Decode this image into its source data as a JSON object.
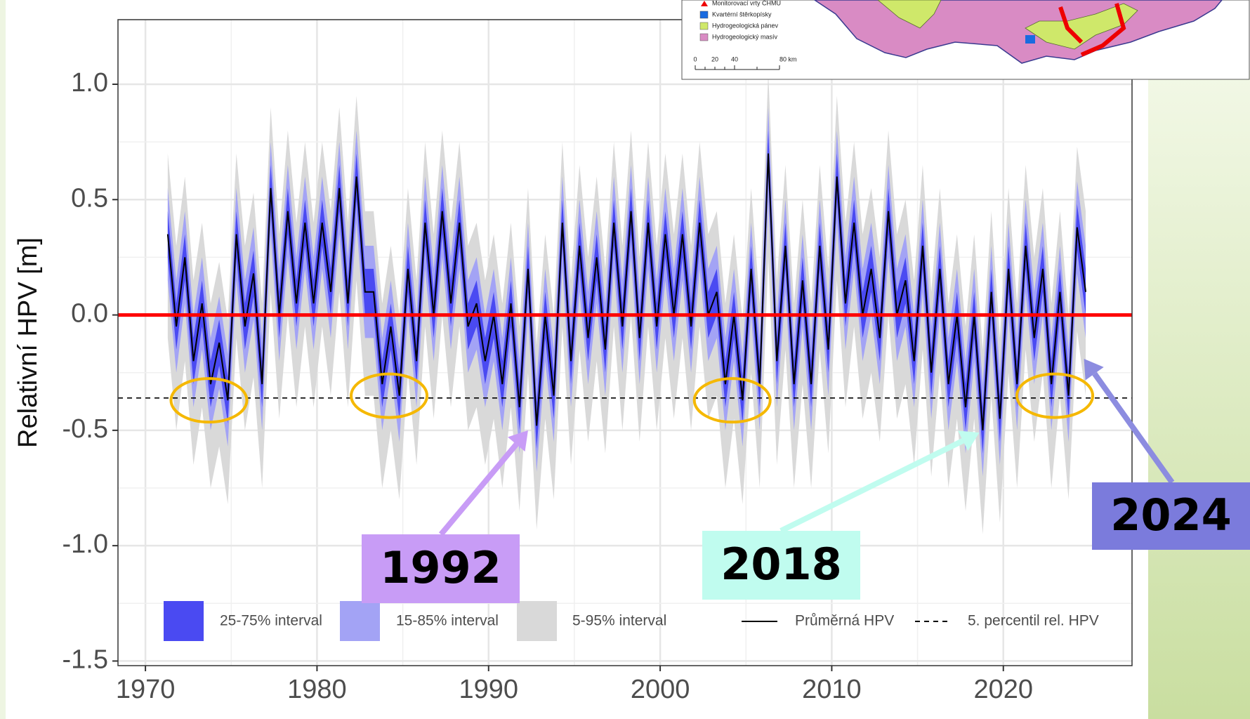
{
  "chart_data": {
    "type": "band_line",
    "y_label": "Relativní HPV [m]",
    "xlim": [
      1968.4,
      2027.5
    ],
    "ylim": [
      -1.52,
      1.28
    ],
    "xticks": [
      1970,
      1980,
      1990,
      2000,
      2010,
      2020
    ],
    "yticks": [
      {
        "value": 1,
        "label": "1.0"
      },
      {
        "value": 0.5,
        "label": "0.5"
      },
      {
        "value": 0,
        "label": "0.0"
      },
      {
        "value": -0.5,
        "label": "-0.5"
      },
      {
        "value": -1,
        "label": "-1.0"
      },
      {
        "value": -1.5,
        "label": "-1.5"
      }
    ],
    "grid": true,
    "x": [
      1971.3,
      1971.8,
      1972.3,
      1972.8,
      1973.3,
      1973.8,
      1974.3,
      1974.8,
      1975.3,
      1975.8,
      1976.3,
      1976.8,
      1977.3,
      1977.8,
      1978.3,
      1978.8,
      1979.3,
      1979.8,
      1980.3,
      1980.8,
      1981.3,
      1981.8,
      1982.3,
      1982.8,
      1983.3,
      1983.8,
      1984.3,
      1984.8,
      1985.3,
      1985.8,
      1986.3,
      1986.8,
      1987.3,
      1987.8,
      1988.3,
      1988.8,
      1989.3,
      1989.8,
      1990.3,
      1990.8,
      1991.3,
      1991.8,
      1992.3,
      1992.8,
      1993.3,
      1993.8,
      1994.3,
      1994.8,
      1995.3,
      1995.8,
      1996.3,
      1996.8,
      1997.3,
      1997.8,
      1998.3,
      1998.8,
      1999.3,
      1999.8,
      2000.3,
      2000.8,
      2001.3,
      2001.8,
      2002.3,
      2002.8,
      2003.3,
      2003.8,
      2004.3,
      2004.8,
      2005.3,
      2005.8,
      2006.3,
      2006.8,
      2007.3,
      2007.8,
      2008.3,
      2008.8,
      2009.3,
      2009.8,
      2010.3,
      2010.8,
      2011.3,
      2011.8,
      2012.3,
      2012.8,
      2013.3,
      2013.8,
      2014.3,
      2014.8,
      2015.3,
      2015.8,
      2016.3,
      2016.8,
      2017.3,
      2017.8,
      2018.3,
      2018.8,
      2019.3,
      2019.8,
      2020.3,
      2020.8,
      2021.3,
      2021.8,
      2022.3,
      2022.8,
      2023.3,
      2023.8,
      2024.3,
      2024.8
    ],
    "bands": [
      {
        "name": "5-95% interval",
        "color": "#d9d9d9",
        "lower": [
          -0.1,
          -0.5,
          -0.2,
          -0.65,
          -0.4,
          -0.75,
          -0.57,
          -0.82,
          -0.1,
          -0.5,
          -0.27,
          -0.75,
          0.1,
          -0.45,
          0.0,
          -0.4,
          -0.05,
          -0.4,
          -0.05,
          -0.35,
          0.1,
          -0.4,
          0.15,
          -0.35,
          -0.35,
          -0.75,
          -0.5,
          -0.8,
          -0.25,
          -0.65,
          -0.05,
          -0.45,
          0.0,
          -0.4,
          -0.05,
          -0.5,
          -0.4,
          -0.65,
          -0.45,
          -0.75,
          -0.4,
          -0.85,
          -0.25,
          -0.93,
          -0.45,
          -0.8,
          -0.05,
          -0.65,
          -0.15,
          -0.55,
          -0.2,
          -0.6,
          -0.05,
          -0.5,
          0.0,
          -0.55,
          -0.05,
          -0.5,
          -0.1,
          -0.45,
          -0.1,
          -0.5,
          -0.05,
          -0.45,
          -0.35,
          -0.75,
          -0.45,
          -0.82,
          -0.25,
          -0.75,
          0.25,
          -0.65,
          -0.15,
          -0.75,
          -0.3,
          -0.75,
          -0.15,
          -0.6,
          0.15,
          -0.4,
          -0.05,
          -0.45,
          -0.25,
          -0.55,
          0.0,
          -0.45,
          -0.3,
          -0.65,
          -0.15,
          -0.7,
          -0.25,
          -0.75,
          -0.45,
          -0.85,
          -0.45,
          -0.95,
          -0.35,
          -0.9,
          -0.25,
          -0.75,
          -0.15,
          -0.55,
          -0.25,
          -0.75,
          -0.35,
          -0.8,
          -0.07,
          -0.35
        ],
        "upper": [
          0.7,
          0.3,
          0.6,
          0.15,
          0.4,
          0.05,
          0.23,
          -0.02,
          0.7,
          0.3,
          0.53,
          0.05,
          0.9,
          0.35,
          0.8,
          0.4,
          0.75,
          0.4,
          0.75,
          0.45,
          0.9,
          0.4,
          0.95,
          0.45,
          0.45,
          0.05,
          0.3,
          0.0,
          0.55,
          0.15,
          0.75,
          0.35,
          0.8,
          0.4,
          0.75,
          0.3,
          0.4,
          0.15,
          0.35,
          0.05,
          0.4,
          -0.05,
          0.55,
          -0.13,
          0.35,
          0.0,
          0.75,
          0.15,
          0.65,
          0.25,
          0.6,
          0.2,
          0.75,
          0.3,
          0.8,
          0.25,
          0.75,
          0.3,
          0.7,
          0.35,
          0.7,
          0.3,
          0.75,
          0.35,
          0.45,
          0.05,
          0.35,
          -0.02,
          0.55,
          0.05,
          1.05,
          0.15,
          0.65,
          0.05,
          0.5,
          0.05,
          0.65,
          0.2,
          0.95,
          0.4,
          0.75,
          0.35,
          0.55,
          0.25,
          0.8,
          0.35,
          0.5,
          0.15,
          0.65,
          0.1,
          0.55,
          0.05,
          0.35,
          -0.05,
          0.35,
          -0.15,
          0.45,
          -0.1,
          0.55,
          0.05,
          0.65,
          0.25,
          0.55,
          0.05,
          0.45,
          0.0,
          0.73,
          0.45
        ]
      },
      {
        "name": "15-85% interval",
        "color": "#a3a3f5",
        "lower": [
          0.15,
          -0.25,
          0.05,
          -0.4,
          -0.15,
          -0.5,
          -0.32,
          -0.57,
          0.15,
          -0.25,
          -0.02,
          -0.5,
          0.35,
          -0.2,
          0.25,
          -0.15,
          0.2,
          -0.15,
          0.2,
          -0.1,
          0.35,
          -0.15,
          0.4,
          -0.1,
          -0.1,
          -0.5,
          -0.25,
          -0.55,
          0.0,
          -0.4,
          0.2,
          -0.2,
          0.25,
          -0.15,
          0.2,
          -0.25,
          -0.15,
          -0.4,
          -0.2,
          -0.5,
          -0.15,
          -0.6,
          0.0,
          -0.68,
          -0.2,
          -0.55,
          0.2,
          -0.4,
          0.1,
          -0.3,
          0.05,
          -0.35,
          0.2,
          -0.25,
          0.25,
          -0.3,
          0.2,
          -0.25,
          0.15,
          -0.2,
          0.15,
          -0.25,
          0.2,
          -0.2,
          -0.1,
          -0.5,
          -0.2,
          -0.57,
          0.0,
          -0.5,
          0.5,
          -0.4,
          0.1,
          -0.5,
          -0.05,
          -0.5,
          0.1,
          -0.35,
          0.4,
          -0.15,
          0.2,
          -0.2,
          0.0,
          -0.3,
          0.25,
          -0.2,
          -0.05,
          -0.4,
          0.1,
          -0.45,
          0.0,
          -0.5,
          -0.2,
          -0.6,
          -0.2,
          -0.7,
          -0.1,
          -0.65,
          0.0,
          -0.5,
          0.1,
          -0.3,
          0.0,
          -0.5,
          -0.1,
          -0.55,
          0.18,
          -0.1
        ],
        "upper": [
          0.55,
          0.15,
          0.45,
          0.0,
          0.25,
          -0.1,
          0.08,
          -0.17,
          0.55,
          0.15,
          0.38,
          -0.1,
          0.75,
          0.2,
          0.65,
          0.25,
          0.6,
          0.25,
          0.6,
          0.3,
          0.75,
          0.25,
          0.8,
          0.3,
          0.3,
          -0.1,
          0.15,
          -0.15,
          0.4,
          0.0,
          0.6,
          0.2,
          0.65,
          0.25,
          0.6,
          0.15,
          0.25,
          0.0,
          0.2,
          -0.1,
          0.25,
          -0.2,
          0.4,
          -0.28,
          0.2,
          -0.15,
          0.6,
          0.0,
          0.5,
          0.1,
          0.45,
          0.05,
          0.6,
          0.15,
          0.65,
          0.1,
          0.6,
          0.15,
          0.55,
          0.2,
          0.55,
          0.15,
          0.6,
          0.2,
          0.3,
          -0.1,
          0.2,
          -0.17,
          0.4,
          -0.1,
          0.9,
          0.0,
          0.5,
          -0.1,
          0.35,
          -0.1,
          0.5,
          0.05,
          0.8,
          0.25,
          0.6,
          0.2,
          0.4,
          0.1,
          0.65,
          0.2,
          0.35,
          0.0,
          0.5,
          -0.05,
          0.4,
          -0.1,
          0.2,
          -0.2,
          0.2,
          -0.3,
          0.3,
          -0.25,
          0.4,
          -0.1,
          0.5,
          0.1,
          0.4,
          -0.1,
          0.3,
          -0.15,
          0.58,
          0.3
        ]
      },
      {
        "name": "25-75% interval",
        "color": "#4a4af2",
        "lower": [
          0.25,
          -0.15,
          0.15,
          -0.3,
          -0.05,
          -0.4,
          -0.22,
          -0.47,
          0.25,
          -0.15,
          0.08,
          -0.4,
          0.45,
          -0.1,
          0.35,
          -0.05,
          0.3,
          -0.05,
          0.3,
          0.0,
          0.45,
          -0.05,
          0.5,
          0.0,
          0.0,
          -0.4,
          -0.15,
          -0.45,
          0.1,
          -0.3,
          0.3,
          -0.1,
          0.35,
          -0.05,
          0.3,
          -0.15,
          -0.05,
          -0.3,
          -0.1,
          -0.4,
          -0.05,
          -0.5,
          0.1,
          -0.58,
          -0.1,
          -0.45,
          0.3,
          -0.3,
          0.2,
          -0.2,
          0.15,
          -0.25,
          0.3,
          -0.15,
          0.35,
          -0.2,
          0.3,
          -0.15,
          0.25,
          -0.1,
          0.25,
          -0.15,
          0.3,
          -0.1,
          0.0,
          -0.4,
          -0.1,
          -0.47,
          0.1,
          -0.4,
          0.6,
          -0.3,
          0.2,
          -0.4,
          0.05,
          -0.4,
          0.2,
          -0.25,
          0.5,
          -0.05,
          0.3,
          -0.1,
          0.1,
          -0.2,
          0.35,
          -0.1,
          0.05,
          -0.3,
          0.2,
          -0.35,
          0.1,
          -0.4,
          -0.1,
          -0.5,
          -0.1,
          -0.6,
          0.0,
          -0.55,
          0.1,
          -0.4,
          0.2,
          -0.2,
          0.1,
          -0.4,
          0.0,
          -0.45,
          0.28,
          0.0
        ],
        "upper": [
          0.45,
          0.05,
          0.35,
          -0.1,
          0.15,
          -0.2,
          -0.02,
          -0.27,
          0.45,
          0.05,
          0.28,
          -0.2,
          0.65,
          0.1,
          0.55,
          0.15,
          0.5,
          0.15,
          0.5,
          0.2,
          0.65,
          0.15,
          0.7,
          0.2,
          0.2,
          -0.2,
          0.05,
          -0.25,
          0.3,
          -0.1,
          0.5,
          0.1,
          0.55,
          0.15,
          0.5,
          0.05,
          0.15,
          -0.1,
          0.1,
          -0.2,
          0.15,
          -0.3,
          0.3,
          -0.38,
          0.1,
          -0.25,
          0.5,
          -0.1,
          0.4,
          0.0,
          0.35,
          -0.05,
          0.5,
          0.05,
          0.55,
          0.0,
          0.5,
          0.05,
          0.45,
          0.1,
          0.45,
          0.05,
          0.5,
          0.1,
          0.2,
          -0.2,
          0.1,
          -0.27,
          0.3,
          -0.2,
          0.8,
          -0.1,
          0.4,
          -0.2,
          0.25,
          -0.2,
          0.4,
          -0.05,
          0.7,
          0.15,
          0.5,
          0.1,
          0.3,
          0.0,
          0.55,
          0.1,
          0.25,
          -0.1,
          0.4,
          -0.15,
          0.3,
          -0.2,
          0.1,
          -0.3,
          0.1,
          -0.4,
          0.2,
          -0.35,
          0.3,
          -0.2,
          0.4,
          0.0,
          0.3,
          -0.2,
          0.2,
          -0.25,
          0.48,
          0.2
        ]
      }
    ],
    "series": [
      {
        "name": "Průměrná HPV",
        "color": "#000000",
        "values": [
          0.35,
          -0.05,
          0.25,
          -0.2,
          0.05,
          -0.3,
          -0.12,
          -0.37,
          0.35,
          -0.05,
          0.18,
          -0.3,
          0.55,
          0.0,
          0.45,
          0.05,
          0.4,
          0.05,
          0.4,
          0.1,
          0.55,
          0.05,
          0.6,
          0.1,
          0.1,
          -0.3,
          -0.05,
          -0.35,
          0.2,
          -0.2,
          0.4,
          0.0,
          0.45,
          0.05,
          0.4,
          -0.05,
          0.05,
          -0.2,
          0.0,
          -0.3,
          0.05,
          -0.4,
          0.2,
          -0.48,
          0.0,
          -0.35,
          0.4,
          -0.2,
          0.3,
          -0.1,
          0.25,
          -0.15,
          0.4,
          -0.05,
          0.45,
          -0.1,
          0.4,
          -0.05,
          0.35,
          0.0,
          0.35,
          -0.05,
          0.4,
          0.0,
          0.1,
          -0.3,
          0.0,
          -0.37,
          0.2,
          -0.3,
          0.7,
          -0.2,
          0.3,
          -0.3,
          0.15,
          -0.3,
          0.3,
          -0.15,
          0.6,
          0.05,
          0.4,
          0.0,
          0.2,
          -0.1,
          0.45,
          0.0,
          0.15,
          -0.2,
          0.3,
          -0.25,
          0.2,
          -0.3,
          0.0,
          -0.4,
          0.0,
          -0.5,
          0.1,
          -0.45,
          0.2,
          -0.3,
          0.3,
          -0.1,
          0.2,
          -0.3,
          0.1,
          -0.35,
          0.38,
          0.1
        ]
      }
    ],
    "reference_lines": [
      {
        "name": "5. percentil rel. HPV",
        "y": -0.36,
        "color": "#000000",
        "style": "dashed"
      },
      {
        "y": 0,
        "color": "#ff0000",
        "style": "solid"
      }
    ],
    "highlights": [
      {
        "x": 1973.7,
        "y": -0.37
      },
      {
        "x": 1984.2,
        "y": -0.35
      },
      {
        "x": 2004.2,
        "y": -0.37
      },
      {
        "x": 2023.0,
        "y": -0.35
      }
    ],
    "highlight_color": "#f5b800",
    "annotations": [
      {
        "text": "1992",
        "x": 1992.3,
        "y": -0.5,
        "color": "#c89cf6"
      },
      {
        "text": "2018",
        "x": 2018.6,
        "y": -0.51,
        "color": "#c0fcef"
      },
      {
        "text": "2024",
        "x": 2024.7,
        "y": -0.19,
        "color": "#7b7bdc"
      }
    ]
  },
  "map_inset": {
    "legend": [
      "Monitorovací vrty ČHMÚ",
      "Kvartérní štěrkopísky",
      "Hydrogeologická pánev",
      "Hydrogeologický masív"
    ],
    "scale": [
      "0",
      "20",
      "40",
      "80 km"
    ]
  }
}
